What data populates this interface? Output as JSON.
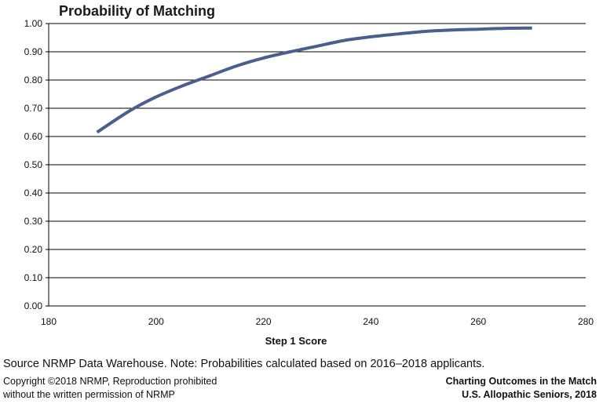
{
  "chart_data": {
    "type": "line",
    "title": "Probability of Matching",
    "xlabel": "Step 1 Score",
    "ylabel": "",
    "xlim": [
      180,
      280
    ],
    "ylim": [
      0,
      1
    ],
    "x_ticks": [
      180,
      200,
      220,
      240,
      260,
      280
    ],
    "y_ticks": [
      "0.00",
      "0.10",
      "0.20",
      "0.30",
      "0.40",
      "0.50",
      "0.60",
      "0.70",
      "0.80",
      "0.90",
      "1.00"
    ],
    "grid": "horizontal",
    "legend": "none",
    "series": [
      {
        "color": "#4a5f8f",
        "x": [
          189,
          195,
          200,
          205,
          210,
          215,
          220,
          225,
          230,
          235,
          240,
          245,
          250,
          255,
          260,
          265,
          270
        ],
        "y": [
          0.615,
          0.69,
          0.74,
          0.78,
          0.815,
          0.85,
          0.878,
          0.9,
          0.92,
          0.94,
          0.953,
          0.963,
          0.972,
          0.977,
          0.98,
          0.983,
          0.984
        ]
      }
    ]
  },
  "footer": {
    "source": "Source NRMP Data Warehouse. Note: Probabilities calculated based on 2016–2018 applicants.",
    "copyright_line1": "Copyright ©2018 NRMP, Reproduction prohibited",
    "copyright_line2": "without the written permission of NRMP",
    "credit_line1": "Charting Outcomes in the Match",
    "credit_line2": "U.S. Allopathic Seniors, 2018"
  }
}
